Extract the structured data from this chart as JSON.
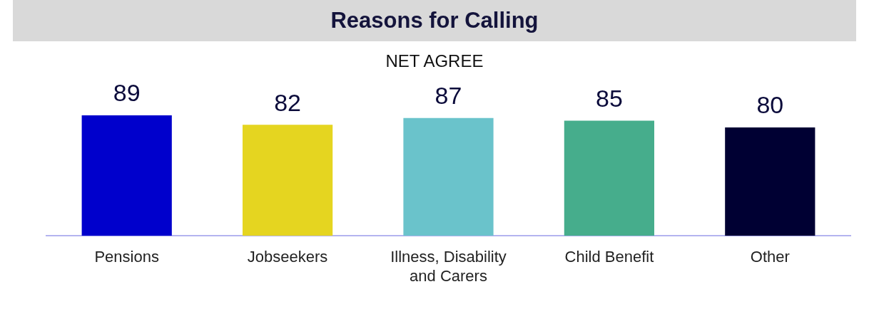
{
  "chart_data": {
    "type": "bar",
    "title": "Reasons for Calling",
    "subtitle": "NET AGREE",
    "categories": [
      "Pensions",
      "Jobseekers",
      "Illness, Disability and Carers",
      "Child Benefit",
      "Other"
    ],
    "values": [
      89,
      82,
      87,
      85,
      80
    ],
    "colors": [
      "#0000cc",
      "#e5d520",
      "#6ac3cb",
      "#46ad8c",
      "#000033"
    ],
    "data_labels": true
  }
}
